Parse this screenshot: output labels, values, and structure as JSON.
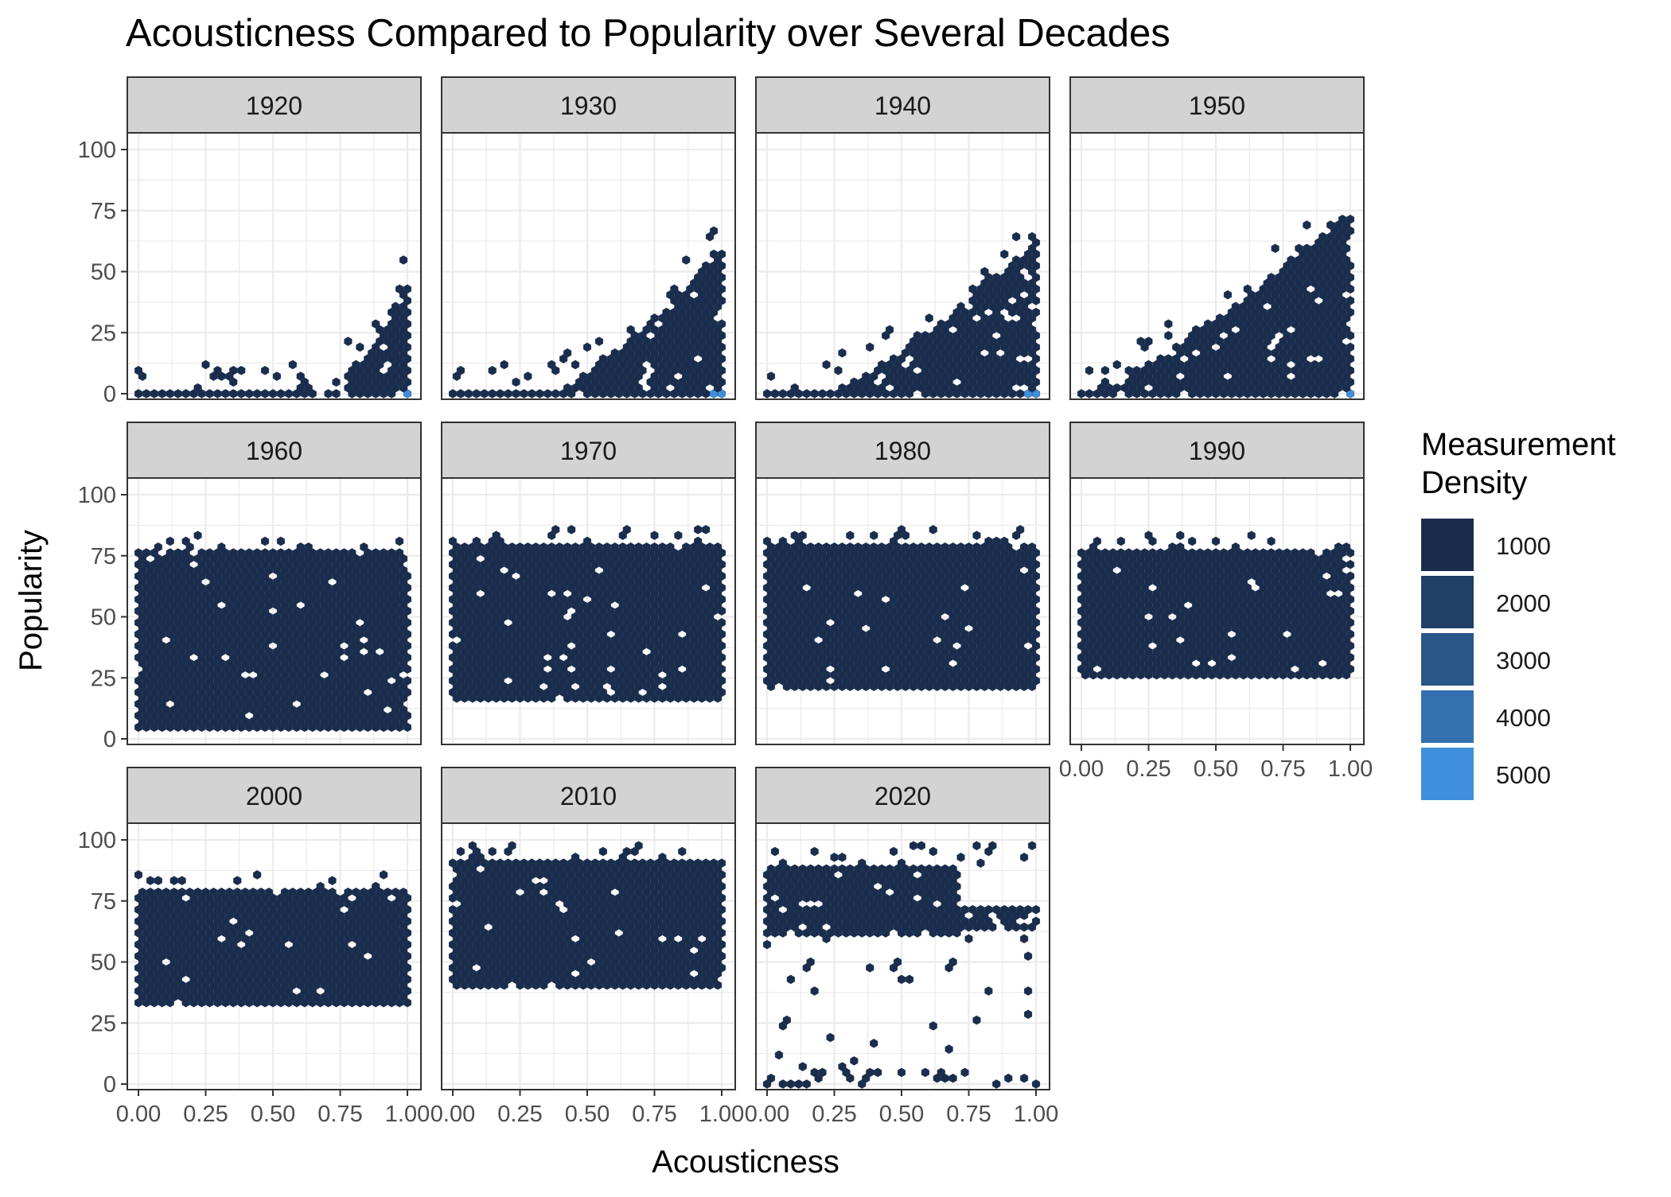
{
  "chart_data": {
    "type": "hexbin",
    "title": "Acousticness Compared to Popularity over Several Decades",
    "xlabel": "Acousticness",
    "ylabel": "Popularity",
    "xlim": [
      0,
      1
    ],
    "ylim": [
      0,
      100
    ],
    "x_ticks": [
      "0.00",
      "0.25",
      "0.50",
      "0.75",
      "1.00"
    ],
    "y_ticks": [
      "0",
      "25",
      "50",
      "75",
      "100"
    ],
    "grid": true,
    "facets": [
      {
        "label": "1920",
        "pop_lo": 0,
        "pop_hi": 45,
        "pattern": "rising",
        "dense_from": 0.7,
        "hot_spot": [
          1.0,
          0
        ]
      },
      {
        "label": "1930",
        "pop_lo": 0,
        "pop_hi": 60,
        "pattern": "rising",
        "dense_from": 0.35,
        "hot_spot": [
          0.99,
          0
        ]
      },
      {
        "label": "1940",
        "pop_lo": 0,
        "pop_hi": 63,
        "pattern": "rising",
        "dense_from": 0.2,
        "hot_spot": [
          0.98,
          0
        ]
      },
      {
        "label": "1950",
        "pop_lo": 0,
        "pop_hi": 75,
        "pattern": "rising",
        "dense_from": 0.0,
        "hot_spot": [
          0.98,
          0
        ]
      },
      {
        "label": "1960",
        "pop_lo": 3,
        "pop_hi": 78,
        "pattern": "band"
      },
      {
        "label": "1970",
        "pop_lo": 15,
        "pop_hi": 80,
        "pattern": "band"
      },
      {
        "label": "1980",
        "pop_lo": 20,
        "pop_hi": 80,
        "pattern": "band"
      },
      {
        "label": "1990",
        "pop_lo": 25,
        "pop_hi": 78,
        "pattern": "band"
      },
      {
        "label": "2000",
        "pop_lo": 33,
        "pop_hi": 80,
        "pattern": "band"
      },
      {
        "label": "2010",
        "pop_lo": 40,
        "pop_hi": 92,
        "pattern": "band"
      },
      {
        "label": "2020",
        "pop_lo": 0,
        "pop_hi": 98,
        "pattern": "split",
        "main_lo": 60,
        "main_hi": 90
      }
    ],
    "legend": {
      "title": "Measurement Density",
      "placement": "right",
      "entries": [
        {
          "label": "1000",
          "color": "#1a2d4c"
        },
        {
          "label": "2000",
          "color": "#213f67"
        },
        {
          "label": "3000",
          "color": "#2a5688"
        },
        {
          "label": "4000",
          "color": "#3470b0"
        },
        {
          "label": "5000",
          "color": "#3f8fdc"
        }
      ]
    },
    "colors": {
      "low": "#132b43",
      "high": "#56b1f7",
      "strip": "#d3d3d3",
      "grid": "#ebebeb"
    }
  }
}
